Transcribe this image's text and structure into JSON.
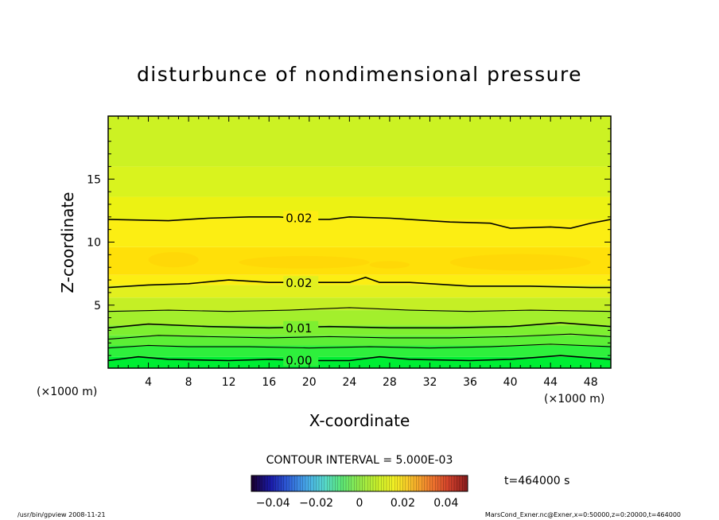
{
  "chart_data": {
    "type": "contour",
    "title": "disturbunce of nondimensional pressure",
    "xlabel": "X-coordinate",
    "ylabel": "Z-coordinate",
    "x_unit_left": "(×1000 m)",
    "x_unit_right": "(×1000 m)",
    "xlim": [
      0,
      50
    ],
    "ylim": [
      0,
      20
    ],
    "x_ticks": [
      4,
      8,
      12,
      16,
      20,
      24,
      28,
      32,
      36,
      40,
      44,
      48
    ],
    "y_ticks": [
      5,
      10,
      15
    ],
    "grid": false,
    "contour_interval_text": "CONTOUR INTERVAL = 5.000E-03",
    "time_label": "t=464000 s",
    "contours": [
      {
        "label": "0.00",
        "label_x": 17.5,
        "points": [
          [
            0,
            0.6
          ],
          [
            3,
            0.9
          ],
          [
            6,
            0.7
          ],
          [
            12,
            0.6
          ],
          [
            16,
            0.7
          ],
          [
            20,
            0.6
          ],
          [
            24,
            0.6
          ],
          [
            27,
            0.9
          ],
          [
            30,
            0.7
          ],
          [
            36,
            0.6
          ],
          [
            40,
            0.7
          ],
          [
            45,
            1.0
          ],
          [
            50,
            0.7
          ]
        ]
      },
      {
        "label": "",
        "points": [
          [
            0,
            1.6
          ],
          [
            4,
            1.8
          ],
          [
            8,
            1.7
          ],
          [
            14,
            1.7
          ],
          [
            20,
            1.6
          ],
          [
            26,
            1.7
          ],
          [
            32,
            1.6
          ],
          [
            38,
            1.7
          ],
          [
            44,
            1.9
          ],
          [
            50,
            1.7
          ]
        ]
      },
      {
        "label": "",
        "points": [
          [
            0,
            2.3
          ],
          [
            5,
            2.6
          ],
          [
            10,
            2.5
          ],
          [
            16,
            2.4
          ],
          [
            22,
            2.5
          ],
          [
            28,
            2.4
          ],
          [
            34,
            2.4
          ],
          [
            40,
            2.5
          ],
          [
            46,
            2.7
          ],
          [
            50,
            2.5
          ]
        ]
      },
      {
        "label": "0.01",
        "label_x": 17.5,
        "points": [
          [
            0,
            3.2
          ],
          [
            4,
            3.5
          ],
          [
            10,
            3.3
          ],
          [
            16,
            3.2
          ],
          [
            22,
            3.3
          ],
          [
            28,
            3.2
          ],
          [
            34,
            3.2
          ],
          [
            40,
            3.3
          ],
          [
            45,
            3.6
          ],
          [
            50,
            3.3
          ]
        ]
      },
      {
        "label": "",
        "points": [
          [
            0,
            4.5
          ],
          [
            6,
            4.6
          ],
          [
            12,
            4.5
          ],
          [
            18,
            4.6
          ],
          [
            24,
            4.8
          ],
          [
            30,
            4.6
          ],
          [
            36,
            4.5
          ],
          [
            42,
            4.6
          ],
          [
            50,
            4.5
          ]
        ]
      },
      {
        "label": "0.02",
        "label_x": 17.5,
        "points": [
          [
            0,
            6.4
          ],
          [
            4,
            6.6
          ],
          [
            8,
            6.7
          ],
          [
            12,
            7.0
          ],
          [
            16,
            6.8
          ],
          [
            20,
            6.8
          ],
          [
            24,
            6.8
          ],
          [
            25.6,
            7.2
          ],
          [
            27,
            6.8
          ],
          [
            30,
            6.8
          ],
          [
            36,
            6.5
          ],
          [
            42,
            6.5
          ],
          [
            48,
            6.4
          ],
          [
            50,
            6.4
          ]
        ]
      },
      {
        "label": "0.02",
        "label_x": 17.5,
        "points": [
          [
            0,
            11.8
          ],
          [
            6,
            11.7
          ],
          [
            10,
            11.9
          ],
          [
            14,
            12.0
          ],
          [
            17,
            12.0
          ],
          [
            20,
            11.8
          ],
          [
            22,
            11.8
          ],
          [
            24,
            12.0
          ],
          [
            28,
            11.9
          ],
          [
            34,
            11.6
          ],
          [
            38,
            11.5
          ],
          [
            40,
            11.1
          ],
          [
            44,
            11.2
          ],
          [
            46,
            11.1
          ],
          [
            48,
            11.5
          ],
          [
            50,
            11.8
          ]
        ]
      }
    ],
    "colorbar": {
      "ticks": [
        -0.04,
        -0.02,
        0,
        0.02,
        0.04
      ],
      "tick_labels": [
        "−0.04",
        "−0.02",
        "0",
        "0.02",
        "0.04"
      ],
      "range": [
        -0.05,
        0.05
      ],
      "colors": [
        "#1a0033",
        "#1a1aa8",
        "#2f5fd8",
        "#46a6e8",
        "#56d8cf",
        "#5ce676",
        "#93e94a",
        "#c8ef2b",
        "#f4ef24",
        "#f7b82a",
        "#f07a2e",
        "#d2412b",
        "#8e1e1e"
      ]
    },
    "field_bands": [
      {
        "z": [
          0,
          0.9
        ],
        "color": "#00ee33"
      },
      {
        "z": [
          0.9,
          1.8
        ],
        "color": "#2ef03c"
      },
      {
        "z": [
          1.8,
          2.6
        ],
        "color": "#5cef36"
      },
      {
        "z": [
          2.6,
          3.4
        ],
        "color": "#7def30"
      },
      {
        "z": [
          3.4,
          4.6
        ],
        "color": "#a3ef2c"
      },
      {
        "z": [
          4.6,
          5.6
        ],
        "color": "#c5ef25"
      },
      {
        "z": [
          5.6,
          6.6
        ],
        "color": "#e2f01f"
      },
      {
        "z": [
          6.6,
          7.4
        ],
        "color": "#fcee13"
      },
      {
        "z": [
          7.4,
          9.6
        ],
        "color": "#ffe009"
      },
      {
        "z": [
          9.6,
          11.8
        ],
        "color": "#fcee13"
      },
      {
        "z": [
          11.8,
          13.6
        ],
        "color": "#ecf213"
      },
      {
        "z": [
          13.6,
          16.0
        ],
        "color": "#d9f31e"
      },
      {
        "z": [
          16.0,
          20.0
        ],
        "color": "#ccf223"
      }
    ]
  },
  "footer": {
    "left": "/usr/bin/gpview   2008-11-21",
    "right": "MarsCond_Exner.nc@Exner,x=0:50000,z=0:20000,t=464000"
  }
}
